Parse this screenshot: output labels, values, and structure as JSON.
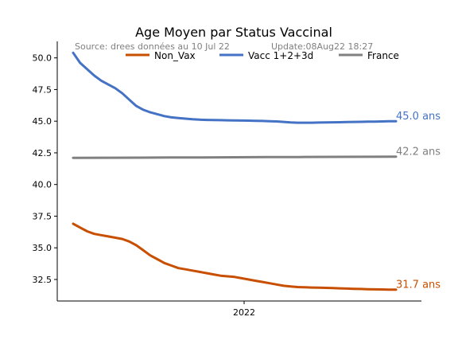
{
  "chart_data": {
    "type": "line",
    "title": "Age Moyen par Status Vaccinal",
    "source_note": "Source: drees données au 10 Jul 22",
    "update_note": "Update:08Aug22 18:27",
    "xlabel": "",
    "ylabel": "",
    "x_tick_labels": [
      "2022"
    ],
    "y_ticks": [
      32.5,
      35.0,
      37.5,
      40.0,
      42.5,
      45.0,
      47.5,
      50.0
    ],
    "y_tick_labels": [
      "32.5",
      "35.0",
      "37.5",
      "40.0",
      "42.5",
      "45.0",
      "47.5",
      "50.0"
    ],
    "ylim": [
      30.8,
      51.3
    ],
    "grid": false,
    "legend_position": "top",
    "series": [
      {
        "name": "Non_Vax",
        "color": "#c84f00",
        "end_label": "31.7 ans",
        "values": [
          36.9,
          36.6,
          36.3,
          36.1,
          36.0,
          35.9,
          35.8,
          35.7,
          35.5,
          35.2,
          34.8,
          34.4,
          34.1,
          33.8,
          33.6,
          33.4,
          33.3,
          33.2,
          33.1,
          33.0,
          32.9,
          32.8,
          32.75,
          32.7,
          32.6,
          32.5,
          32.4,
          32.3,
          32.2,
          32.1,
          32.0,
          31.95,
          31.9,
          31.88,
          31.86,
          31.85,
          31.84,
          31.82,
          31.8,
          31.78,
          31.76,
          31.75,
          31.73,
          31.72,
          31.71,
          31.7,
          31.7
        ]
      },
      {
        "name": "Vacc 1+2+3d",
        "color": "#4472c4",
        "end_label": "45.0 ans",
        "values": [
          50.4,
          49.6,
          49.1,
          48.6,
          48.2,
          47.9,
          47.6,
          47.2,
          46.7,
          46.2,
          45.9,
          45.7,
          45.55,
          45.4,
          45.3,
          45.25,
          45.2,
          45.15,
          45.12,
          45.1,
          45.09,
          45.08,
          45.07,
          45.06,
          45.05,
          45.04,
          45.03,
          45.02,
          45.0,
          44.98,
          44.94,
          44.9,
          44.88,
          44.88,
          44.88,
          44.89,
          44.9,
          44.91,
          44.92,
          44.93,
          44.94,
          44.95,
          44.96,
          44.97,
          44.98,
          44.99,
          45.0
        ]
      },
      {
        "name": "France",
        "color": "#808080",
        "end_label": "42.2 ans",
        "values": [
          42.1,
          42.11,
          42.12,
          42.13,
          42.14,
          42.15,
          42.16,
          42.17,
          42.18,
          42.19,
          42.2
        ]
      }
    ]
  }
}
